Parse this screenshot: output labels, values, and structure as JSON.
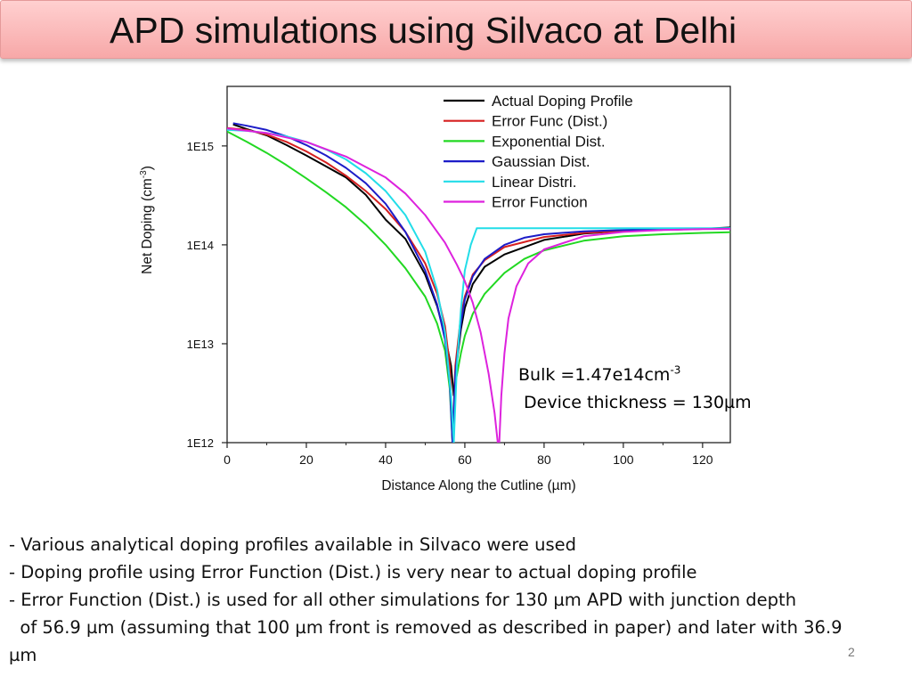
{
  "slide": {
    "title": "APD simulations using Silvaco at Delhi",
    "page_number": "2",
    "annotation": {
      "bulk_prefix": "Bulk =1.47e14cm",
      "bulk_sup": "-3",
      "thickness": "Device thickness = 130µm"
    },
    "bullets": [
      "- Various analytical doping profiles available in Silvaco were used",
      "- Doping profile using Error Function (Dist.) is very near to actual doping profile",
      "- Error Function (Dist.) is used for all other simulations for 130 µm APD with junction depth",
      "  of 56.9 µm (assuming that 100 µm front is removed as described in paper) and later with 36.9",
      "µm"
    ],
    "colors": {
      "title_bar": "#f9b8b8",
      "actual": "#000000",
      "error_func_dist": "#d62020",
      "exponential": "#22d822",
      "gaussian": "#1c1cc8",
      "linear": "#22dde8",
      "error_function": "#dd22dd"
    }
  },
  "chart_data": {
    "type": "line",
    "xlabel": "Distance Along the Cutline (µm)",
    "ylabel": "Net Doping (cm",
    "ylabel_sup": "-3",
    "ylabel_close": ")",
    "yscale": "log",
    "xlim": [
      0,
      127
    ],
    "ylim": [
      1000000000000.0,
      4000000000000000.0
    ],
    "xticks": [
      0,
      20,
      40,
      60,
      80,
      100,
      120
    ],
    "yticks": [
      {
        "value": 1000000000000.0,
        "label": "1E12"
      },
      {
        "value": 10000000000000.0,
        "label": "1E13"
      },
      {
        "value": 100000000000000.0,
        "label": "1E14"
      },
      {
        "value": 1000000000000000.0,
        "label": "1E15"
      }
    ],
    "legend_position": "top-right",
    "series": [
      {
        "name": "Actual Doping Profile",
        "color": "#000000",
        "x": [
          1.5,
          5,
          10,
          15,
          20,
          25,
          30,
          35,
          40,
          45,
          50,
          53,
          55,
          56.5,
          57.2,
          58,
          59,
          60,
          62,
          65,
          70,
          80,
          90,
          100,
          110,
          120,
          127
        ],
        "y": [
          1650000000000000.0,
          1480000000000000.0,
          1280000000000000.0,
          1020000000000000.0,
          800000000000000.0,
          620000000000000.0,
          480000000000000.0,
          320000000000000.0,
          180000000000000.0,
          115000000000000.0,
          50000000000000.0,
          24000000000000.0,
          12000000000000.0,
          6000000000000.0,
          3000000000000.0,
          6500000000000.0,
          14000000000000.0,
          23000000000000.0,
          40000000000000.0,
          60000000000000.0,
          80000000000000.0,
          112000000000000.0,
          130000000000000.0,
          138000000000000.0,
          142000000000000.0,
          145000000000000.0,
          150000000000000.0
        ]
      },
      {
        "name": "Error Func (Dist.)",
        "color": "#d62020",
        "x": [
          0,
          5,
          10,
          15,
          20,
          25,
          30,
          35,
          40,
          45,
          50,
          53,
          55,
          56.2,
          56.9,
          57.6,
          59,
          60,
          62,
          65,
          70,
          80,
          90,
          100,
          110,
          120,
          127
        ],
        "y": [
          1520000000000000.0,
          1450000000000000.0,
          1300000000000000.0,
          1100000000000000.0,
          880000000000000.0,
          680000000000000.0,
          500000000000000.0,
          350000000000000.0,
          230000000000000.0,
          135000000000000.0,
          65000000000000.0,
          32000000000000.0,
          15000000000000.0,
          6000000000000.0,
          1000000000000.0,
          6000000000000.0,
          19000000000000.0,
          30000000000000.0,
          50000000000000.0,
          70000000000000.0,
          95000000000000.0,
          120000000000000.0,
          132000000000000.0,
          138000000000000.0,
          142000000000000.0,
          145000000000000.0,
          146000000000000.0
        ]
      },
      {
        "name": "Exponential Dist.",
        "color": "#22d822",
        "x": [
          0,
          5,
          10,
          15,
          20,
          25,
          30,
          35,
          40,
          45,
          50,
          53,
          55,
          56.2,
          56.9,
          57.6,
          59,
          60,
          62,
          65,
          70,
          75,
          80,
          90,
          100,
          110,
          120,
          127
        ],
        "y": [
          1400000000000000.0,
          1100000000000000.0,
          850000000000000.0,
          640000000000000.0,
          470000000000000.0,
          340000000000000.0,
          240000000000000.0,
          160000000000000.0,
          100000000000000.0,
          58000000000000.0,
          30000000000000.0,
          16000000000000.0,
          8500000000000.0,
          3500000000000.0,
          1000000000000.0,
          4000000000000.0,
          8000000000000.0,
          12000000000000.0,
          20000000000000.0,
          32000000000000.0,
          52000000000000.0,
          72000000000000.0,
          88000000000000.0,
          110000000000000.0,
          122000000000000.0,
          128000000000000.0,
          132000000000000.0,
          134000000000000.0
        ]
      },
      {
        "name": "Gaussian Dist.",
        "color": "#1c1cc8",
        "x": [
          1.5,
          5,
          10,
          15,
          20,
          25,
          30,
          35,
          40,
          45,
          50,
          53,
          55,
          56.2,
          56.9,
          57.6,
          59,
          60,
          62,
          65,
          70,
          75,
          80,
          90,
          100,
          110,
          120,
          127
        ],
        "y": [
          1700000000000000.0,
          1600000000000000.0,
          1450000000000000.0,
          1250000000000000.0,
          1020000000000000.0,
          800000000000000.0,
          600000000000000.0,
          420000000000000.0,
          260000000000000.0,
          135000000000000.0,
          55000000000000.0,
          25000000000000.0,
          11000000000000.0,
          4000000000000.0,
          1000000000000.0,
          5000000000000.0,
          16000000000000.0,
          28000000000000.0,
          48000000000000.0,
          72000000000000.0,
          100000000000000.0,
          118000000000000.0,
          128000000000000.0,
          137000000000000.0,
          141000000000000.0,
          144000000000000.0,
          146000000000000.0,
          147000000000000.0
        ]
      },
      {
        "name": "Linear Distri.",
        "color": "#22dde8",
        "x": [
          0,
          5,
          10,
          15,
          20,
          25,
          30,
          35,
          40,
          45,
          50,
          53,
          55,
          56.5,
          57.2,
          58,
          59,
          60,
          61.5,
          63,
          70,
          80,
          90,
          100,
          110,
          120,
          127
        ],
        "y": [
          1450000000000000.0,
          1420000000000000.0,
          1350000000000000.0,
          1250000000000000.0,
          1100000000000000.0,
          920000000000000.0,
          730000000000000.0,
          530000000000000.0,
          350000000000000.0,
          200000000000000.0,
          85000000000000.0,
          35000000000000.0,
          13000000000000.0,
          3000000000000.0,
          1000000000000.0,
          6000000000000.0,
          22000000000000.0,
          55000000000000.0,
          100000000000000.0,
          147000000000000.0,
          147000000000000.0,
          147000000000000.0,
          147000000000000.0,
          147000000000000.0,
          147000000000000.0,
          147000000000000.0,
          147000000000000.0
        ]
      },
      {
        "name": "Error Function",
        "color": "#dd22dd",
        "x": [
          0,
          10,
          20,
          30,
          40,
          45,
          50,
          55,
          58,
          60,
          62,
          64,
          66,
          67.5,
          68.3,
          68.7,
          69.2,
          70,
          71,
          73,
          76,
          80,
          90,
          100,
          110,
          120,
          127
        ],
        "y": [
          1500000000000000.0,
          1350000000000000.0,
          1100000000000000.0,
          780000000000000.0,
          480000000000000.0,
          330000000000000.0,
          200000000000000.0,
          105000000000000.0,
          63000000000000.0,
          43000000000000.0,
          26000000000000.0,
          13000000000000.0,
          5000000000000.0,
          2000000000000.0,
          1000000000000.0,
          1000000000000.0,
          3000000000000.0,
          8000000000000.0,
          18000000000000.0,
          38000000000000.0,
          65000000000000.0,
          90000000000000.0,
          122000000000000.0,
          135000000000000.0,
          141000000000000.0,
          144000000000000.0,
          145000000000000.0
        ]
      }
    ]
  }
}
